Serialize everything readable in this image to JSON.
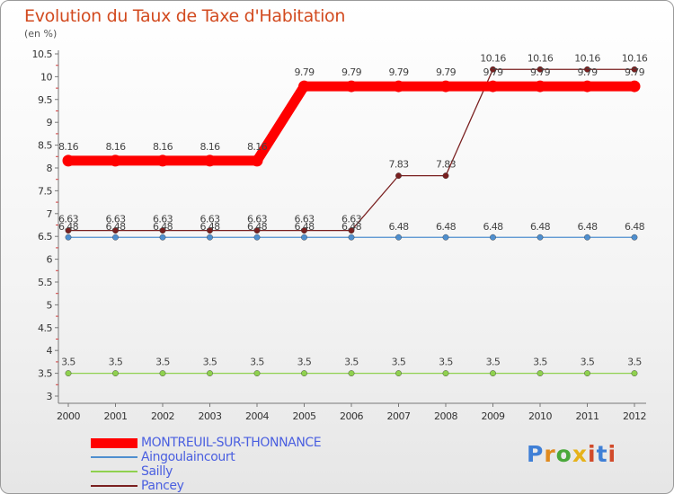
{
  "title": "Evolution du Taux de Taxe d'Habitation",
  "subtitle": "(en %)",
  "logo": "Proxiti",
  "chart_data": {
    "type": "line",
    "title": "Evolution du Taux de Taxe d'Habitation",
    "ylabel": "(en %)",
    "xlabel": "",
    "ylim": [
      3,
      10.5
    ],
    "yticks": [
      "3",
      "3.5",
      "4",
      "4.5",
      "5",
      "5.5",
      "6",
      "6.5",
      "7",
      "7.5",
      "8",
      "8.5",
      "9",
      "9.5",
      "10",
      "10.5"
    ],
    "categories": [
      "2000",
      "2001",
      "2002",
      "2003",
      "2004",
      "2005",
      "2006",
      "2007",
      "2008",
      "2009",
      "2010",
      "2011",
      "2012"
    ],
    "series": [
      {
        "name": "MONTREUIL-SUR-THONNANCE",
        "color": "#ff0000",
        "values": [
          8.16,
          8.16,
          8.16,
          8.16,
          8.16,
          9.79,
          9.79,
          9.79,
          9.79,
          9.79,
          9.79,
          9.79,
          9.79
        ],
        "labels": [
          "8.16",
          "8.16",
          "8.16",
          "8.16",
          "8.16",
          "9.79",
          "9.79",
          "9.79",
          "9.79",
          "9.79",
          "9.79",
          "9.79",
          "9.79"
        ]
      },
      {
        "name": "Aingoulaincourt",
        "color": "#4f8fcf",
        "values": [
          6.48,
          6.48,
          6.48,
          6.48,
          6.48,
          6.48,
          6.48,
          6.48,
          6.48,
          6.48,
          6.48,
          6.48,
          6.48
        ],
        "labels": [
          "6.48",
          "6.48",
          "6.48",
          "6.48",
          "6.48",
          "6.48",
          "6.48",
          "6.48",
          "6.48",
          "6.48",
          "6.48",
          "6.48",
          "6.48"
        ]
      },
      {
        "name": "Sailly",
        "color": "#8fd14f",
        "values": [
          3.5,
          3.5,
          3.5,
          3.5,
          3.5,
          3.5,
          3.5,
          3.5,
          3.5,
          3.5,
          3.5,
          3.5,
          3.5
        ],
        "labels": [
          "3.5",
          "3.5",
          "3.5",
          "3.5",
          "3.5",
          "3.5",
          "3.5",
          "3.5",
          "3.5",
          "3.5",
          "3.5",
          "3.5",
          "3.5"
        ]
      },
      {
        "name": "Pancey",
        "color": "#7a2020",
        "values": [
          6.63,
          6.63,
          6.63,
          6.63,
          6.63,
          6.63,
          6.63,
          7.83,
          7.83,
          10.16,
          10.16,
          10.16,
          10.16
        ],
        "labels": [
          "6.63",
          "6.63",
          "6.63",
          "6.63",
          "6.63",
          "6.63",
          "6.63",
          "7.83",
          "7.83",
          "10.16",
          "10.16",
          "10.16",
          "10.16"
        ]
      }
    ],
    "legend": "bottom-left",
    "grid": false
  }
}
